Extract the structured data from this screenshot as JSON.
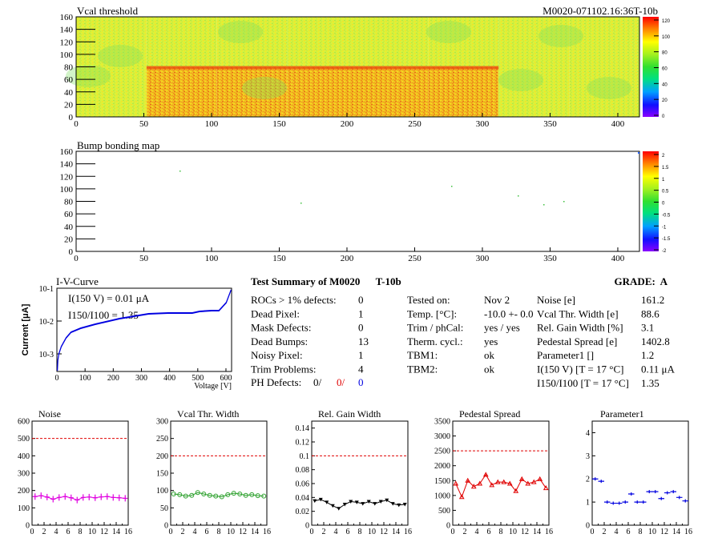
{
  "header": {
    "vcal_title": "Vcal threshold",
    "module_id": "M0020-071102.16:36T-10b",
    "bump_title": "Bump bonding map"
  },
  "map_axes": {
    "x_ticks": [
      "0",
      "50",
      "100",
      "150",
      "200",
      "250",
      "300",
      "350",
      "400"
    ],
    "y_ticks": [
      "0",
      "20",
      "40",
      "60",
      "80",
      "100",
      "120",
      "140",
      "160"
    ],
    "vcal_scale": [
      "0",
      "20",
      "40",
      "60",
      "80",
      "100",
      "120"
    ],
    "bump_scale": [
      "-2",
      "-1.5",
      "-1",
      "-0.5",
      "0",
      "0.5",
      "1",
      "1.5",
      "2"
    ]
  },
  "iv_curve": {
    "title": "I-V-Curve",
    "ylabel": "Current [μA]",
    "xlabel": "Voltage [V]",
    "ann1": "I(150 V) = 0.01 μA",
    "ann2": "I150/I100 = 1.35",
    "x_ticks": [
      "0",
      "100",
      "200",
      "300",
      "400",
      "500",
      "600"
    ],
    "y_ticks": [
      "10-3",
      "10-2",
      "10-1"
    ]
  },
  "summary": {
    "title": "Test Summary of M0020      T-10b",
    "grade": "GRADE:  A",
    "defects": [
      {
        "label": "ROCs > 1% defects:",
        "value": "0"
      },
      {
        "label": "Dead Pixel:",
        "value": "1"
      },
      {
        "label": "Mask Defects:",
        "value": "0"
      },
      {
        "label": "Dead Bumps:",
        "value": "13"
      },
      {
        "label": "Noisy Pixel:",
        "value": "1"
      },
      {
        "label": "Trim Problems:",
        "value": "4"
      }
    ],
    "ph_label": "PH Defects:",
    "ph_values": [
      "0/",
      "0/",
      "0"
    ],
    "tests": [
      {
        "label": "Tested on:",
        "value": "Nov 2"
      },
      {
        "label": "Temp. [°C]:",
        "value": "-10.0 +- 0.0"
      },
      {
        "label": "Trim / phCal:",
        "value": "yes / yes"
      },
      {
        "label": "Therm. cycl.:",
        "value": "yes"
      },
      {
        "label": "TBM1:",
        "value": "ok"
      },
      {
        "label": "TBM2:",
        "value": "ok"
      }
    ],
    "params": [
      {
        "label": "Noise [e]",
        "value": "161.2"
      },
      {
        "label": "Vcal Thr. Width [e]",
        "value": "88.6"
      },
      {
        "label": "Rel. Gain Width [%]",
        "value": "3.1"
      },
      {
        "label": "Pedestal Spread [e]",
        "value": "1402.8"
      },
      {
        "label": "Parameter1 []",
        "value": "1.2"
      },
      {
        "label": "I(150 V)  [T = 17 °C]",
        "value": "0.11 μA"
      },
      {
        "label": "I150/I100  [T = 17 °C]",
        "value": "1.35"
      }
    ]
  },
  "chart_data": [
    {
      "type": "line",
      "title": "Noise",
      "x": [
        0,
        1,
        2,
        3,
        4,
        5,
        6,
        7,
        8,
        9,
        10,
        11,
        12,
        13,
        14,
        15
      ],
      "values": [
        165,
        170,
        162,
        150,
        160,
        165,
        158,
        145,
        160,
        162,
        158,
        163,
        165,
        160,
        158,
        155
      ],
      "ylim": [
        0,
        600
      ],
      "y_ticks": [
        0,
        100,
        200,
        300,
        400,
        500,
        600
      ],
      "threshold": 500,
      "color": "#e000e0",
      "marker": "cross"
    },
    {
      "type": "line",
      "title": "Vcal Thr. Width",
      "x": [
        0,
        1,
        2,
        3,
        4,
        5,
        6,
        7,
        8,
        9,
        10,
        11,
        12,
        13,
        14,
        15
      ],
      "values": [
        90,
        88,
        84,
        86,
        94,
        90,
        86,
        84,
        82,
        88,
        92,
        90,
        86,
        88,
        85,
        84
      ],
      "ylim": [
        0,
        300
      ],
      "y_ticks": [
        0,
        50,
        100,
        150,
        200,
        250,
        300
      ],
      "threshold": 200,
      "color": "#2ca02c",
      "marker": "circle"
    },
    {
      "type": "line",
      "title": "Rel. Gain Width",
      "x": [
        0,
        1,
        2,
        3,
        4,
        5,
        6,
        7,
        8,
        9,
        10,
        11,
        12,
        13,
        14,
        15
      ],
      "values": [
        0.035,
        0.037,
        0.033,
        0.028,
        0.024,
        0.03,
        0.034,
        0.033,
        0.031,
        0.034,
        0.031,
        0.034,
        0.036,
        0.031,
        0.029,
        0.03
      ],
      "ylim": [
        0,
        0.15
      ],
      "y_ticks": [
        0,
        0.02,
        0.04,
        0.06,
        0.08,
        0.1,
        0.12,
        0.14
      ],
      "threshold": 0.1,
      "color": "#000000",
      "marker": "triangle-down"
    },
    {
      "type": "line",
      "title": "Pedestal Spread",
      "x": [
        0,
        1,
        2,
        3,
        4,
        5,
        6,
        7,
        8,
        9,
        10,
        11,
        12,
        13,
        14,
        15
      ],
      "values": [
        1400,
        950,
        1500,
        1300,
        1400,
        1700,
        1350,
        1450,
        1450,
        1400,
        1150,
        1550,
        1400,
        1450,
        1550,
        1250
      ],
      "ylim": [
        0,
        3500
      ],
      "y_ticks": [
        0,
        500,
        1000,
        1500,
        2000,
        2500,
        3000,
        3500
      ],
      "threshold": 2500,
      "color": "#e00000",
      "marker": "triangle-up"
    },
    {
      "type": "scatter",
      "title": "Parameter1",
      "x": [
        0,
        1,
        2,
        3,
        4,
        5,
        6,
        7,
        8,
        9,
        10,
        11,
        12,
        13,
        14,
        15
      ],
      "values": [
        2.0,
        1.9,
        1.0,
        0.95,
        0.95,
        1.0,
        1.35,
        1.0,
        1.0,
        1.45,
        1.45,
        1.15,
        1.4,
        1.45,
        1.2,
        1.05
      ],
      "ylim": [
        0,
        4.5
      ],
      "y_ticks": [
        0,
        1,
        2,
        3,
        4
      ],
      "threshold": null,
      "color": "#0000e0",
      "marker": "bar"
    }
  ]
}
